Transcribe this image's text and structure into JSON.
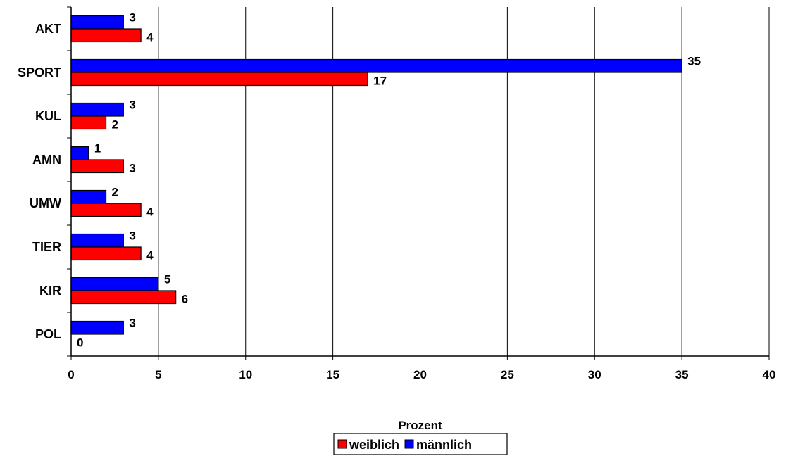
{
  "chart_data": {
    "type": "bar",
    "orientation": "horizontal",
    "title": "",
    "xlabel": "Prozent",
    "ylabel": "",
    "xlim": [
      0,
      40
    ],
    "x_ticks": [
      0,
      5,
      10,
      15,
      20,
      25,
      30,
      35,
      40
    ],
    "grid": "vertical lines",
    "legend_position": "bottom-center",
    "categories": [
      "AKT",
      "SPORT",
      "KUL",
      "AMN",
      "UMW",
      "TIER",
      "KIR",
      "POL"
    ],
    "series": [
      {
        "name": "männlich",
        "color": "#0000ff",
        "values": [
          3,
          35,
          3,
          1,
          2,
          3,
          5,
          3
        ]
      },
      {
        "name": "weiblich",
        "color": "#ff0000",
        "values": [
          4,
          17,
          2,
          3,
          4,
          4,
          6,
          0
        ]
      }
    ],
    "legend": [
      {
        "name": "weiblich",
        "color": "#ff0000"
      },
      {
        "name": "männlich",
        "color": "#0000ff"
      }
    ]
  }
}
